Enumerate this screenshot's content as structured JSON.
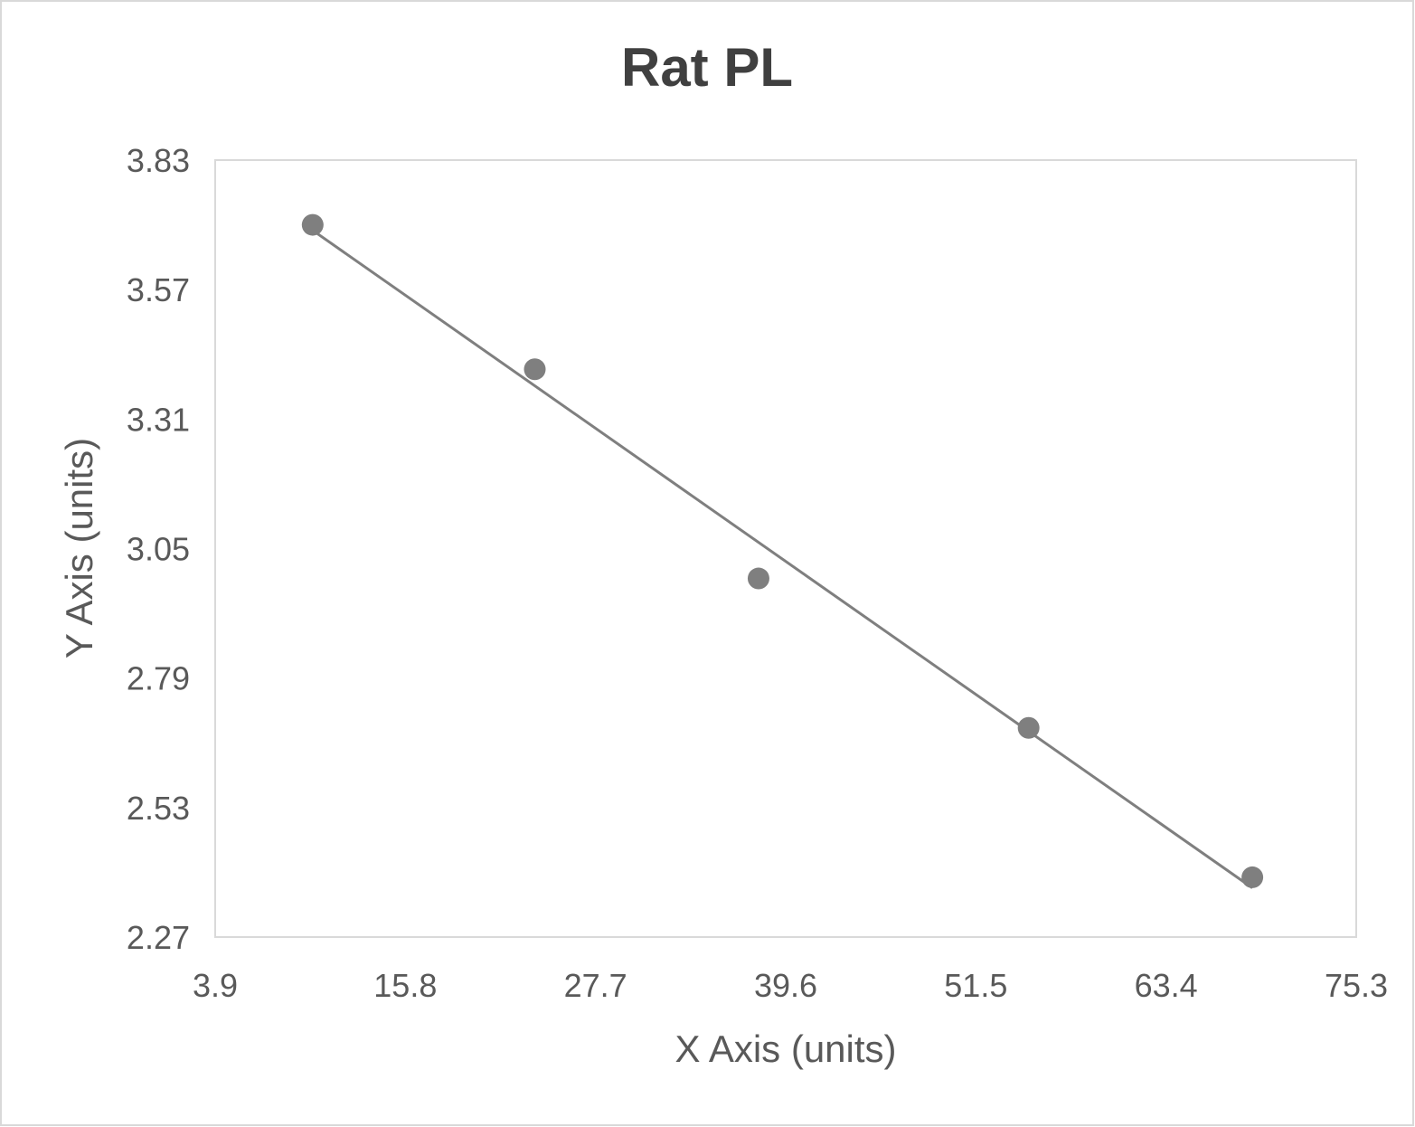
{
  "chart_data": {
    "type": "scatter",
    "title": "Rat PL",
    "xlabel": "X Axis (units)",
    "ylabel": "Y Axis (units)",
    "xlim": [
      3.9,
      75.3
    ],
    "ylim": [
      2.27,
      3.83
    ],
    "xticks": [
      "3.9",
      "15.8",
      "27.7",
      "39.6",
      "51.5",
      "63.4",
      "75.3"
    ],
    "yticks": [
      "3.83",
      "3.57",
      "3.31",
      "3.05",
      "2.79",
      "2.53",
      "2.27"
    ],
    "points": [
      {
        "x": 10.0,
        "y": 3.7
      },
      {
        "x": 23.9,
        "y": 3.41
      },
      {
        "x": 37.9,
        "y": 2.99
      },
      {
        "x": 54.8,
        "y": 2.69
      },
      {
        "x": 68.8,
        "y": 2.39
      }
    ],
    "trendline": "linear",
    "grid": false,
    "legend": "none",
    "colors": {
      "marker": "#7f7f7f",
      "trendline": "#7f7f7f",
      "text": "#595959",
      "title": "#404040",
      "border": "#d9d9d9"
    }
  }
}
